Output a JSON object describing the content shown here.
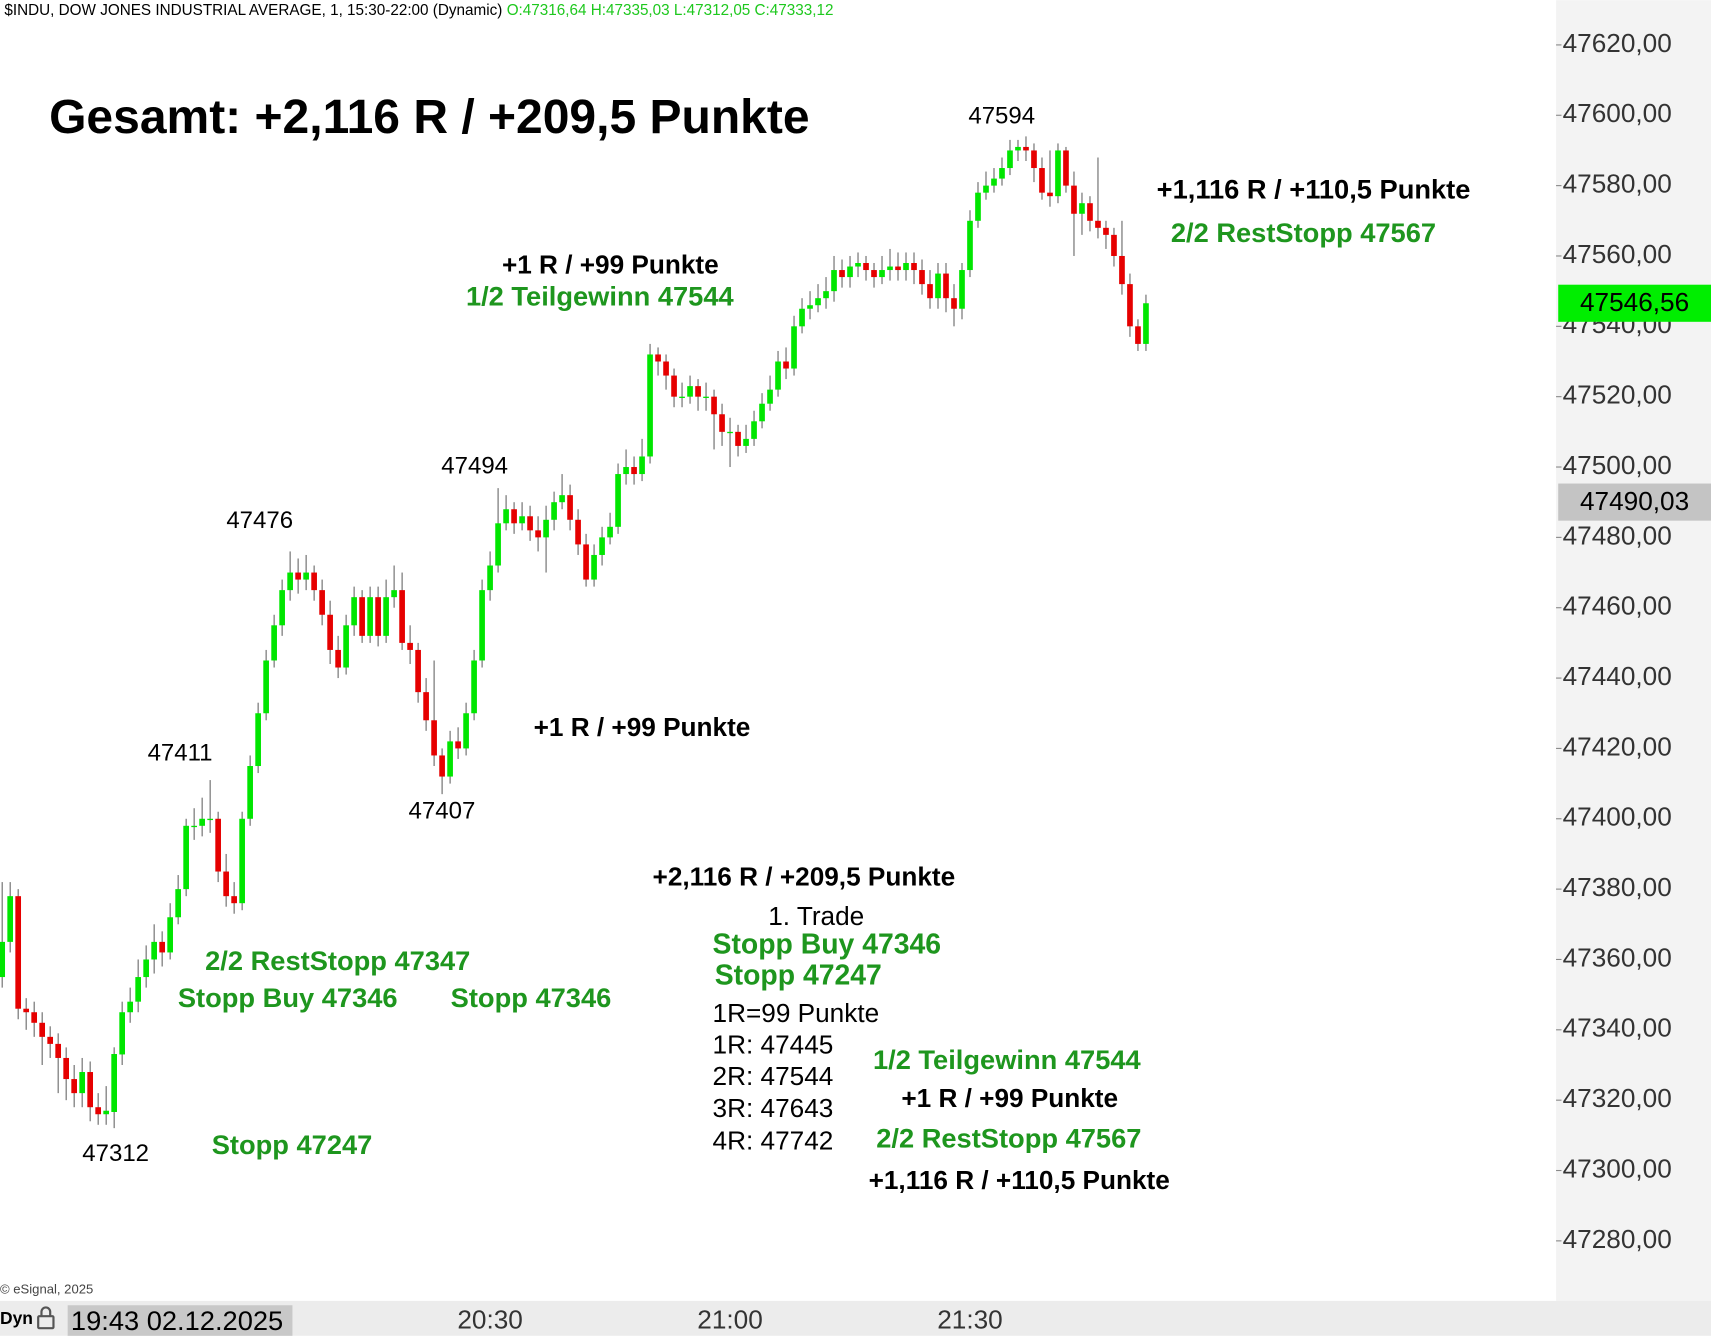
{
  "header": {
    "title": "$INDU, DOW JONES INDUSTRIAL AVERAGE, 1, 15:30-22:00 (Dynamic)",
    "ohlc": "O:47316,64 H:47335,03 L:47312,05 C:47333,12",
    "copyright": "© eSignal, 2025"
  },
  "footer": {
    "mode": "Dyn",
    "cursor_time": "19:43 02.12.2025"
  },
  "chart_data": {
    "type": "candlestick",
    "up_color": "#00e600",
    "down_color": "#e60000",
    "categories": [
      null,
      null,
      null,
      null,
      null,
      null,
      null,
      null,
      null,
      null,
      null,
      null,
      null,
      null,
      null,
      null,
      null,
      null,
      null,
      null,
      null,
      null,
      null,
      null,
      null,
      null,
      null,
      null,
      null,
      null,
      null,
      null,
      null,
      null,
      null,
      null,
      null,
      null,
      null,
      null,
      null,
      null,
      null,
      null,
      null,
      null,
      null,
      null,
      null,
      null,
      null,
      null,
      null,
      null,
      null,
      null,
      null,
      null,
      null,
      null,
      null,
      "20:30",
      null,
      null,
      null,
      null,
      null,
      null,
      null,
      null,
      null,
      null,
      null,
      null,
      null,
      null,
      null,
      null,
      null,
      null,
      null,
      null,
      null,
      null,
      null,
      null,
      null,
      null,
      null,
      null,
      null,
      "21:00",
      null,
      null,
      null,
      null,
      null,
      null,
      null,
      null,
      null,
      null,
      null,
      null,
      null,
      null,
      null,
      null,
      null,
      null,
      null,
      null,
      null,
      null,
      null,
      null,
      null,
      null,
      null,
      null,
      null,
      "21:30",
      null,
      null,
      null,
      null,
      null,
      null,
      null,
      null,
      null,
      null,
      null,
      null,
      null,
      null,
      null,
      null,
      null,
      null,
      null,
      null,
      null,
      null
    ],
    "open": [
      47355,
      47365,
      47378,
      47346,
      47345,
      47342,
      47338,
      47336,
      47332,
      47326,
      47322,
      47328,
      47318,
      47316,
      47316.64,
      47333,
      47345,
      47348,
      47355,
      47360,
      47365,
      47362,
      47372,
      47380,
      47398,
      47398,
      47400,
      47400,
      47385,
      47378,
      47376,
      47400,
      47415,
      47430,
      47445,
      47455,
      47465,
      47470,
      47468,
      47470,
      47465,
      47458,
      47448,
      47443,
      47455,
      47463,
      47452,
      47463,
      47452,
      47463,
      47465,
      47450,
      47448,
      47436,
      47428,
      47418,
      47412,
      47422,
      47420,
      47430,
      47445,
      47465,
      47472,
      47484,
      47488,
      47484,
      47486,
      47482,
      47480,
      47485,
      47490,
      47492,
      47485,
      47478,
      47468,
      47475,
      47480,
      47483,
      47498,
      47500,
      47498,
      47503,
      47532,
      47530,
      47526,
      47520,
      47520,
      47523,
      47520,
      47520,
      47515,
      47510,
      47510,
      47506,
      47508,
      47513,
      47518,
      47522,
      47530,
      47528,
      47540,
      47545,
      47546,
      47548,
      47550,
      47556,
      47554,
      47557,
      47558,
      47556,
      47554,
      47556,
      47557,
      47556,
      47558,
      47556,
      47552,
      47548,
      47555,
      47548,
      47545,
      47556,
      47570,
      47578,
      47580,
      47582,
      47585,
      47590,
      47591,
      47590,
      47585,
      47578,
      47577,
      47590,
      47580,
      47572,
      47575,
      47570,
      47568,
      47566,
      47560,
      47552,
      47540,
      47535
    ],
    "high": [
      47382,
      47382,
      47380,
      47349,
      47348,
      47345,
      47341,
      47339,
      47335,
      47330,
      47332,
      47331,
      47322,
      47324,
      47335.03,
      47348,
      47352,
      47360,
      47364,
      47370,
      47368,
      47376,
      47384,
      47400,
      47403,
      47406,
      47411,
      47402,
      47390,
      47382,
      47402,
      47418,
      47433,
      47448,
      47458,
      47468,
      47476,
      47474,
      47475,
      47472,
      47468,
      47462,
      47452,
      47458,
      47466,
      47465,
      47466,
      47466,
      47468,
      47472,
      47470,
      47455,
      47450,
      47440,
      47445,
      47420,
      47425,
      47426,
      47433,
      47448,
      47468,
      47476,
      47494,
      47492,
      47490,
      47490,
      47489,
      47486,
      47489,
      47493,
      47498,
      47495,
      47488,
      47481,
      47478,
      47483,
      47487,
      47501,
      47505,
      47503,
      47508,
      47535,
      47534,
      47532,
      47528,
      47524,
      47526,
      47525,
      47524,
      47522,
      47518,
      47514,
      47512,
      47512,
      47516,
      47521,
      47526,
      47533,
      47534,
      47543,
      47548,
      47550,
      47552,
      47554,
      47560,
      47559,
      47560,
      47561,
      47560,
      47558,
      47560,
      47562,
      47561,
      47561,
      47561,
      47559,
      47556,
      47558,
      47558,
      47552,
      47558,
      47573,
      47581,
      47584,
      47585,
      47588,
      47593,
      47593,
      47594,
      47592,
      47588,
      47590,
      47592,
      47591,
      47584,
      47578,
      47577,
      47588,
      47570,
      47568,
      47570,
      47555,
      47542,
      47549
    ],
    "low": [
      47352,
      47362,
      47343,
      47340,
      47338,
      47330,
      47332,
      47322,
      47320,
      47318,
      47318,
      47314,
      47313,
      47313,
      47312.05,
      47330,
      47342,
      47345,
      47352,
      47356,
      47358,
      47360,
      47370,
      47378,
      47394,
      47395,
      47396,
      47382,
      47375,
      47373,
      47374,
      47398,
      47413,
      47428,
      47443,
      47452,
      47462,
      47464,
      47465,
      47462,
      47455,
      47444,
      47440,
      47441,
      47452,
      47450,
      47450,
      47449,
      47450,
      47460,
      47448,
      47444,
      47433,
      47425,
      47415,
      47407,
      47410,
      47417,
      47418,
      47428,
      47443,
      47462,
      47470,
      47482,
      47481,
      47482,
      47479,
      47476,
      47470,
      47482,
      47488,
      47482,
      47475,
      47466,
      47466,
      47472,
      47478,
      47481,
      47495,
      47495,
      47496,
      47501,
      47526,
      47522,
      47517,
      47517,
      47518,
      47516,
      47516,
      47505,
      47506,
      47500,
      47503,
      47504,
      47506,
      47511,
      47516,
      47520,
      47525,
      47526,
      47538,
      47542,
      47544,
      47545,
      47547,
      47551,
      47551,
      47554,
      47553,
      47551,
      47552,
      47553,
      47553,
      47553,
      47552,
      47549,
      47545,
      47545,
      47544,
      47540,
      47542,
      47554,
      47568,
      47576,
      47578,
      47580,
      47583,
      47587,
      47587,
      47581,
      47576,
      47574,
      47575,
      47578,
      47560,
      47566,
      47567,
      47565,
      47562,
      47557,
      47549,
      47537,
      47533,
      47533
    ],
    "close": [
      47365,
      47378,
      47346,
      47345,
      47342,
      47338,
      47336,
      47332,
      47326,
      47322,
      47328,
      47318,
      47316,
      47317,
      47333.12,
      47345,
      47348,
      47355,
      47360,
      47365,
      47362,
      47372,
      47380,
      47398,
      47398,
      47400,
      47400,
      47385,
      47378,
      47376,
      47400,
      47415,
      47430,
      47445,
      47455,
      47465,
      47470,
      47468,
      47470,
      47465,
      47458,
      47448,
      47443,
      47455,
      47463,
      47452,
      47463,
      47452,
      47463,
      47465,
      47450,
      47448,
      47436,
      47428,
      47418,
      47412,
      47422,
      47420,
      47430,
      47445,
      47465,
      47472,
      47484,
      47488,
      47484,
      47486,
      47482,
      47480,
      47485,
      47490,
      47492,
      47485,
      47478,
      47468,
      47475,
      47480,
      47483,
      47498,
      47500,
      47498,
      47503,
      47532,
      47530,
      47526,
      47520,
      47520,
      47523,
      47520,
      47520,
      47515,
      47510,
      47510,
      47506,
      47508,
      47513,
      47518,
      47522,
      47530,
      47528,
      47540,
      47545,
      47546,
      47548,
      47550,
      47556,
      47554,
      47557,
      47558,
      47556,
      47554,
      47556,
      47557,
      47556,
      47558,
      47556,
      47552,
      47548,
      47555,
      47548,
      47545,
      47556,
      47570,
      47578,
      47580,
      47582,
      47585,
      47590,
      47591,
      47590,
      47585,
      47578,
      47577,
      47590,
      47580,
      47572,
      47575,
      47570,
      47568,
      47566,
      47560,
      47552,
      47540,
      47535,
      47546.56
    ],
    "ylim": [
      47266,
      47636
    ],
    "yticks": [
      {
        "value": 47280,
        "label": "47280,00"
      },
      {
        "value": 47300,
        "label": "47300,00"
      },
      {
        "value": 47320,
        "label": "47320,00"
      },
      {
        "value": 47340,
        "label": "47340,00"
      },
      {
        "value": 47360,
        "label": "47360,00"
      },
      {
        "value": 47380,
        "label": "47380,00"
      },
      {
        "value": 47400,
        "label": "47400,00"
      },
      {
        "value": 47420,
        "label": "47420,00"
      },
      {
        "value": 47440,
        "label": "47440,00"
      },
      {
        "value": 47460,
        "label": "47460,00"
      },
      {
        "value": 47480,
        "label": "47480,00"
      },
      {
        "value": 47500,
        "label": "47500,00"
      },
      {
        "value": 47520,
        "label": "47520,00"
      },
      {
        "value": 47540,
        "label": "47540,00"
      },
      {
        "value": 47560,
        "label": "47560,00"
      },
      {
        "value": 47580,
        "label": "47580,00"
      },
      {
        "value": 47600,
        "label": "47600,00"
      },
      {
        "value": 47620,
        "label": "47620,00"
      }
    ],
    "price_labels": [
      {
        "value": 47546.56,
        "label": "47546,56",
        "color": "#00ee00"
      },
      {
        "value": 47490.03,
        "label": "47490,03",
        "color": "#c4c4c4"
      }
    ],
    "annotations": [
      {
        "text": "Gesamt: +2,116 R / +209,5 Punkte",
        "color": "#000000"
      },
      {
        "text": "47594",
        "color": "#000000"
      },
      {
        "text": "+1,116 R / +110,5 Punkte",
        "color": "#000000"
      },
      {
        "text": "2/2 RestStopp 47567",
        "color": "#1e961e"
      },
      {
        "text": "+1 R / +99 Punkte",
        "color": "#000000"
      },
      {
        "text": "1/2 Teilgewinn 47544",
        "color": "#1e961e"
      },
      {
        "text": "47494",
        "color": "#000000"
      },
      {
        "text": "47476",
        "color": "#000000"
      },
      {
        "text": "+1 R / +99 Punkte",
        "color": "#000000"
      },
      {
        "text": "47411",
        "color": "#000000"
      },
      {
        "text": "47407",
        "color": "#000000"
      },
      {
        "text": "+2,116 R / +209,5 Punkte",
        "color": "#000000"
      },
      {
        "text": "1. Trade",
        "color": "#000000"
      },
      {
        "text": "Stopp Buy 47346",
        "color": "#1e961e"
      },
      {
        "text": "Stopp 47247",
        "color": "#1e961e"
      },
      {
        "text": "2/2 RestStopp 47347",
        "color": "#1e961e"
      },
      {
        "text": "Stopp Buy 47346",
        "color": "#1e961e"
      },
      {
        "text": "Stopp 47346",
        "color": "#1e961e"
      },
      {
        "text": "1R=99 Punkte",
        "color": "#000000"
      },
      {
        "text": "1R: 47445",
        "color": "#000000"
      },
      {
        "text": "2R: 47544",
        "color": "#000000"
      },
      {
        "text": "3R: 47643",
        "color": "#000000"
      },
      {
        "text": "4R: 47742",
        "color": "#000000"
      },
      {
        "text": "1/2 Teilgewinn 47544",
        "color": "#1e961e"
      },
      {
        "text": "+1 R / +99 Punkte",
        "color": "#000000"
      },
      {
        "text": "2/2 RestStopp 47567",
        "color": "#1e961e"
      },
      {
        "text": "+1,116 R / +110,5 Punkte",
        "color": "#000000"
      },
      {
        "text": "47312",
        "color": "#000000"
      },
      {
        "text": "Stopp 47247",
        "color": "#1e961e"
      }
    ]
  }
}
